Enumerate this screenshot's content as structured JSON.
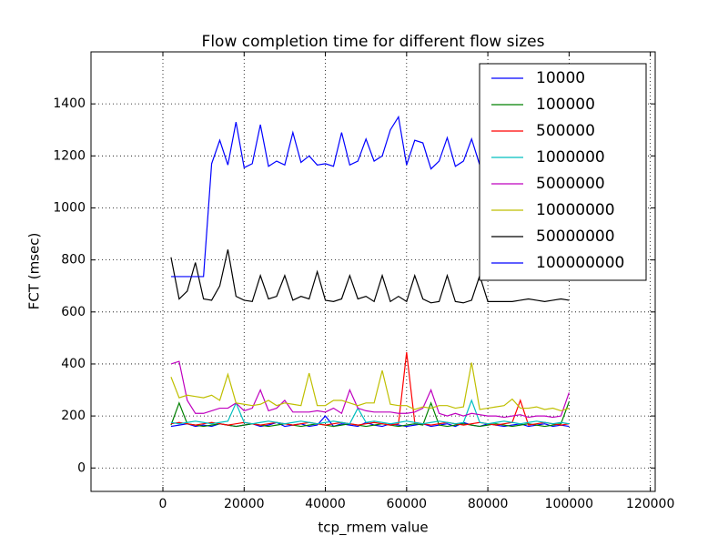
{
  "chart_data": {
    "type": "line",
    "title": "Flow completion time for different flow sizes",
    "x_label": "tcp_rmem value",
    "y_label": "FCT (msec)",
    "x": [
      2000,
      4000,
      6000,
      8000,
      10000,
      12000,
      14000,
      16000,
      18000,
      20000,
      22000,
      24000,
      26000,
      28000,
      30000,
      32000,
      34000,
      36000,
      38000,
      40000,
      42000,
      44000,
      46000,
      48000,
      50000,
      52000,
      54000,
      56000,
      58000,
      60000,
      62000,
      64000,
      66000,
      68000,
      70000,
      72000,
      74000,
      76000,
      78000,
      80000,
      82000,
      84000,
      86000,
      88000,
      90000,
      92000,
      94000,
      96000,
      98000,
      100000
    ],
    "series": [
      {
        "name": "10000",
        "color": "#0000ff",
        "values": [
          160,
          165,
          170,
          160,
          165,
          160,
          170,
          165,
          160,
          165,
          170,
          160,
          165,
          175,
          160,
          165,
          170,
          160,
          165,
          200,
          160,
          170,
          165,
          160,
          175,
          165,
          160,
          170,
          165,
          160,
          165,
          170,
          160,
          165,
          170,
          160,
          175,
          165,
          160,
          170,
          165,
          160,
          165,
          170,
          160,
          165,
          170,
          160,
          165,
          160
        ]
      },
      {
        "name": "100000",
        "color": "#008000",
        "values": [
          165,
          250,
          170,
          165,
          160,
          165,
          170,
          165,
          160,
          165,
          170,
          165,
          160,
          165,
          170,
          165,
          160,
          165,
          170,
          165,
          160,
          165,
          170,
          165,
          160,
          165,
          170,
          165,
          160,
          165,
          170,
          165,
          250,
          165,
          160,
          165,
          170,
          165,
          160,
          165,
          170,
          165,
          160,
          165,
          170,
          165,
          160,
          165,
          170,
          255
        ]
      },
      {
        "name": "500000",
        "color": "#ff0000",
        "values": [
          170,
          175,
          170,
          165,
          170,
          175,
          170,
          165,
          170,
          175,
          170,
          165,
          170,
          175,
          170,
          165,
          170,
          175,
          170,
          165,
          170,
          175,
          170,
          165,
          170,
          175,
          170,
          165,
          170,
          445,
          175,
          170,
          165,
          170,
          175,
          170,
          165,
          170,
          175,
          170,
          165,
          170,
          175,
          260,
          165,
          170,
          175,
          170,
          165,
          170
        ]
      },
      {
        "name": "1000000",
        "color": "#00bfbf",
        "values": [
          175,
          170,
          175,
          180,
          175,
          170,
          175,
          180,
          250,
          175,
          170,
          175,
          180,
          175,
          170,
          175,
          180,
          175,
          170,
          175,
          180,
          175,
          170,
          230,
          175,
          180,
          175,
          170,
          175,
          180,
          175,
          170,
          175,
          180,
          175,
          170,
          175,
          260,
          175,
          170,
          175,
          180,
          175,
          170,
          175,
          180,
          175,
          170,
          175,
          170
        ]
      },
      {
        "name": "5000000",
        "color": "#bf00bf",
        "values": [
          400,
          410,
          260,
          210,
          210,
          220,
          230,
          230,
          250,
          220,
          230,
          300,
          220,
          230,
          260,
          215,
          215,
          215,
          220,
          215,
          230,
          210,
          300,
          230,
          220,
          215,
          215,
          215,
          210,
          210,
          215,
          230,
          300,
          210,
          200,
          210,
          200,
          210,
          205,
          200,
          200,
          195,
          200,
          205,
          195,
          200,
          200,
          195,
          200,
          290
        ]
      },
      {
        "name": "10000000",
        "color": "#bfbf00",
        "values": [
          350,
          270,
          280,
          275,
          270,
          280,
          260,
          360,
          250,
          245,
          240,
          245,
          260,
          240,
          250,
          245,
          240,
          365,
          240,
          240,
          260,
          260,
          250,
          240,
          250,
          250,
          375,
          245,
          240,
          240,
          225,
          235,
          230,
          240,
          240,
          230,
          235,
          405,
          225,
          230,
          235,
          240,
          265,
          230,
          230,
          235,
          225,
          230,
          220,
          230
        ]
      },
      {
        "name": "50000000",
        "color": "#000000",
        "values": [
          810,
          650,
          680,
          790,
          650,
          645,
          700,
          840,
          660,
          645,
          640,
          740,
          650,
          660,
          740,
          645,
          660,
          650,
          755,
          645,
          640,
          650,
          740,
          650,
          660,
          640,
          740,
          640,
          660,
          640,
          740,
          650,
          635,
          640,
          740,
          640,
          635,
          645,
          740,
          640,
          640,
          640,
          640,
          645,
          650,
          645,
          640,
          645,
          650,
          645
        ]
      },
      {
        "name": "100000000",
        "color": "#0000ff",
        "values": [
          736,
          736,
          736,
          736,
          736,
          1170,
          1260,
          1165,
          1330,
          1155,
          1170,
          1320,
          1160,
          1180,
          1165,
          1290,
          1175,
          1200,
          1165,
          1170,
          1160,
          1290,
          1165,
          1180,
          1265,
          1180,
          1200,
          1300,
          1350,
          1165,
          1260,
          1250,
          1150,
          1180,
          1270,
          1160,
          1180,
          1265,
          1165,
          1175,
          1200,
          1170,
          1180,
          1165,
          1190,
          1170,
          1180,
          1165,
          1175,
          1170
        ]
      }
    ],
    "xlim": [
      -17700,
      121200
    ],
    "ylim": [
      -90,
      1600
    ],
    "xticks": [
      0,
      20000,
      40000,
      60000,
      80000,
      100000,
      120000
    ],
    "yticks": [
      0,
      200,
      400,
      600,
      800,
      1000,
      1200,
      1400
    ],
    "grid": true,
    "legend": "upper right"
  }
}
